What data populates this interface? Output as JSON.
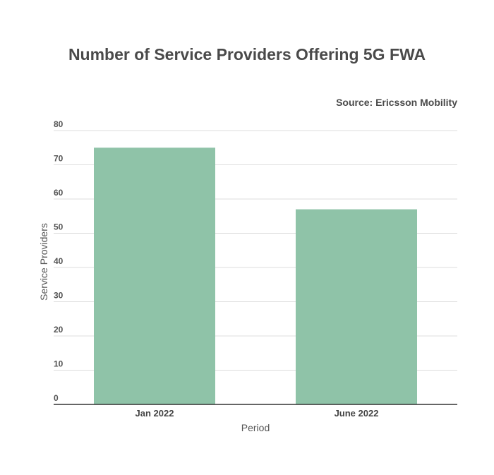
{
  "chart_data": {
    "type": "bar",
    "title": "Number of Service Providers Offering 5G FWA",
    "source": "Source: Ericsson Mobility",
    "categories": [
      "Jan 2022",
      "June 2022"
    ],
    "values": [
      75,
      57
    ],
    "xlabel": "Period",
    "ylabel": "Service Providers",
    "ylim": [
      0,
      80
    ],
    "yticks": [
      0,
      10,
      20,
      30,
      40,
      50,
      60,
      70,
      80
    ],
    "grid": true,
    "legend": "none",
    "colors": {
      "bar": "#8fc3a8",
      "grid": "#dddddd",
      "axis": "#333333"
    }
  }
}
